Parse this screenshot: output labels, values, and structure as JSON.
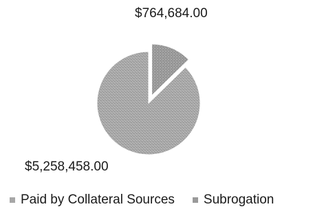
{
  "chart_data": {
    "type": "pie",
    "title": "",
    "series": [
      {
        "name": "Paid by Collateral Sources",
        "value": 5258458.0,
        "label": "$5,258,458.00",
        "color": "#a7a7a7"
      },
      {
        "name": "Subrogation",
        "value": 764684.0,
        "label": "$764,684.00",
        "color": "#9a9a9a",
        "exploded": true
      }
    ],
    "legend_position": "bottom"
  }
}
